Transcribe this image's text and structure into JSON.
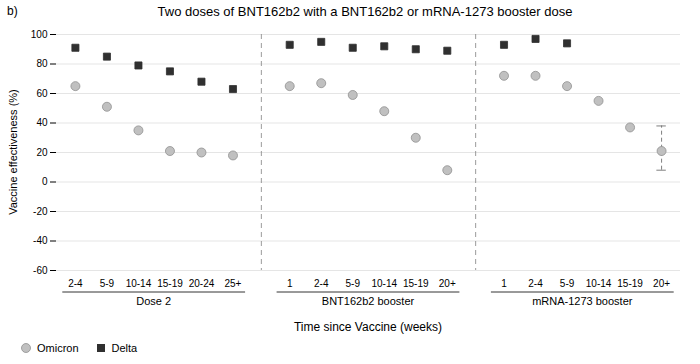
{
  "chart_data": {
    "type": "scatter",
    "title": "Two doses of BNT162b2 with a BNT162b2 or mRNA-1273 booster dose",
    "annotation": "b)",
    "xlabel": "Time since Vaccine (weeks)",
    "ylabel": "Vaccine effectiveness (%)",
    "groups": [
      {
        "label": "Dose 2",
        "categories": [
          "2-4",
          "5-9",
          "10-14",
          "15-19",
          "20-24",
          "25+"
        ]
      },
      {
        "label": "BNT162b2 booster",
        "categories": [
          "1",
          "2-4",
          "5-9",
          "10-14",
          "15-19",
          "20+"
        ]
      },
      {
        "label": "mRNA-1273 booster",
        "categories": [
          "1",
          "2-4",
          "5-9",
          "10-14",
          "15-19",
          "20+"
        ]
      }
    ],
    "series": [
      {
        "name": "Omicron",
        "color": "#c0c0c0",
        "marker": "circle",
        "values": [
          65,
          51,
          35,
          21,
          20,
          18,
          65,
          67,
          59,
          48,
          30,
          8,
          72,
          72,
          65,
          55,
          37,
          21
        ],
        "error_bars": [
          null,
          null,
          null,
          null,
          null,
          null,
          null,
          null,
          null,
          null,
          null,
          null,
          null,
          null,
          null,
          null,
          null,
          [
            8,
            38
          ]
        ]
      },
      {
        "name": "Delta",
        "color": "#303030",
        "marker": "square",
        "values": [
          91,
          85,
          79,
          75,
          68,
          63,
          93,
          95,
          91,
          92,
          90,
          89,
          93,
          97,
          94,
          null,
          null,
          null
        ]
      }
    ],
    "ylim": [
      -60,
      100
    ],
    "yticks": [
      -60,
      -40,
      -20,
      0,
      20,
      40,
      60,
      80,
      100
    ],
    "grid": true,
    "legend": "lower left"
  }
}
